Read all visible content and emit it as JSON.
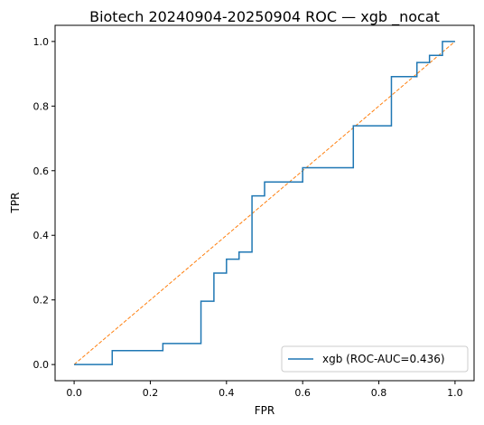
{
  "chart_data": {
    "type": "line",
    "title": "Biotech 20240904-20250904 ROC — xgb _nocat",
    "xlabel": "FPR",
    "ylabel": "TPR",
    "xlim": [
      -0.05,
      1.05
    ],
    "ylim": [
      -0.05,
      1.05
    ],
    "xticks": [
      0.0,
      0.2,
      0.4,
      0.6,
      0.8,
      1.0
    ],
    "xtick_labels": [
      "0.0",
      "0.2",
      "0.4",
      "0.6",
      "0.8",
      "1.0"
    ],
    "yticks": [
      0.0,
      0.2,
      0.4,
      0.6,
      0.8,
      1.0
    ],
    "ytick_labels": [
      "0.0",
      "0.2",
      "0.4",
      "0.6",
      "0.8",
      "1.0"
    ],
    "grid": false,
    "legend_position": "lower-right",
    "series": [
      {
        "name": "xgb (ROC-AUC=0.436)",
        "color": "#1f77b4",
        "style": "solid",
        "x": [
          0.0,
          0.1,
          0.1,
          0.233,
          0.233,
          0.333,
          0.333,
          0.367,
          0.367,
          0.4,
          0.4,
          0.433,
          0.433,
          0.467,
          0.467,
          0.5,
          0.5,
          0.6,
          0.6,
          0.733,
          0.733,
          0.833,
          0.833,
          0.9,
          0.9,
          0.933,
          0.933,
          0.967,
          0.967,
          1.0
        ],
        "y": [
          0.0,
          0.0,
          0.043,
          0.043,
          0.065,
          0.065,
          0.196,
          0.196,
          0.283,
          0.283,
          0.326,
          0.326,
          0.348,
          0.348,
          0.522,
          0.522,
          0.565,
          0.565,
          0.609,
          0.609,
          0.739,
          0.739,
          0.891,
          0.891,
          0.935,
          0.935,
          0.957,
          0.957,
          1.0,
          1.0
        ]
      },
      {
        "name": "",
        "color": "#ff7f0e",
        "style": "dashed",
        "x": [
          0.0,
          1.0
        ],
        "y": [
          0.0,
          1.0
        ]
      }
    ]
  }
}
